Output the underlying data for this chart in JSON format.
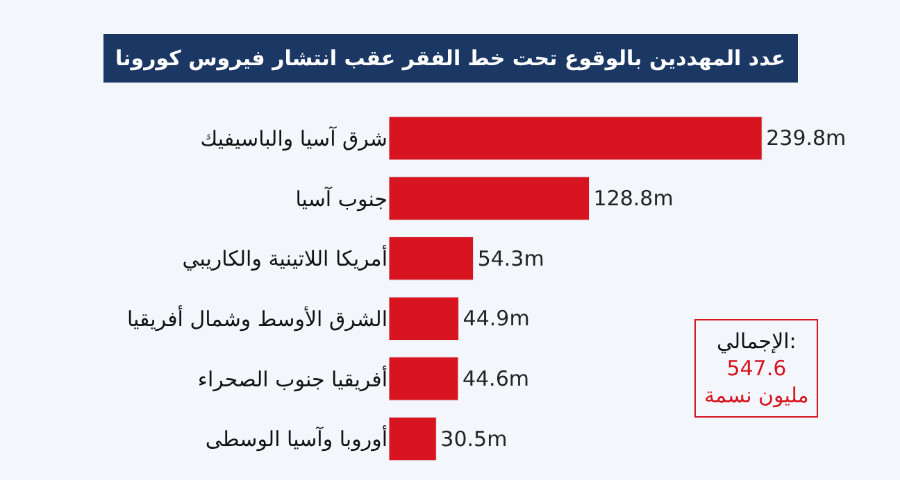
{
  "chart_data": {
    "type": "bar",
    "orientation": "horizontal",
    "title": "عدد المهددين بالوقوع تحت خط الفقر عقب انتشار فيروس كورونا",
    "categories": [
      "شرق آسيا والباسيفيك",
      "جنوب آسيا",
      "أمريكا اللاتينية والكاريبي",
      "الشرق الأوسط وشمال أفريقيا",
      "أفريقيا جنوب الصحراء",
      "أوروبا وآسيا الوسطى"
    ],
    "values": [
      239.8,
      128.8,
      54.3,
      44.9,
      44.6,
      30.5
    ],
    "value_labels": [
      "239.8m",
      "128.8m",
      "54.3m",
      "44.9m",
      "44.6m",
      "30.5m"
    ],
    "color": "#d7141f",
    "annotations": [
      "الإجمالي:",
      "547.6\nمليون نسمة"
    ]
  }
}
